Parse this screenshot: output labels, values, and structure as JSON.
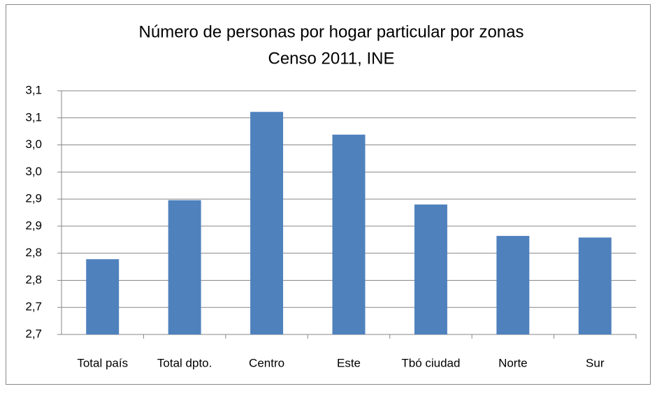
{
  "chart_data": {
    "type": "bar",
    "title": "Número de personas por hogar particular por zonas",
    "subtitle": "Censo 2011, INE",
    "categories": [
      "Total país",
      "Total dpto.",
      "Centro",
      "Este",
      "Tbó ciudad",
      "Norte",
      "Sur"
    ],
    "values": [
      2.789,
      2.898,
      3.061,
      3.019,
      2.89,
      2.832,
      2.829
    ],
    "color": "#4f81bd",
    "ylim": [
      2.65,
      3.1
    ],
    "yticks": [
      {
        "value": 2.65,
        "label": "2,7"
      },
      {
        "value": 2.7,
        "label": "2,7"
      },
      {
        "value": 2.75,
        "label": "2,8"
      },
      {
        "value": 2.8,
        "label": "2,8"
      },
      {
        "value": 2.85,
        "label": "2,9"
      },
      {
        "value": 2.9,
        "label": "2,9"
      },
      {
        "value": 2.95,
        "label": "3,0"
      },
      {
        "value": 3.0,
        "label": "3,0"
      },
      {
        "value": 3.05,
        "label": "3,1"
      },
      {
        "value": 3.1,
        "label": "3,1"
      }
    ],
    "grid": true
  }
}
